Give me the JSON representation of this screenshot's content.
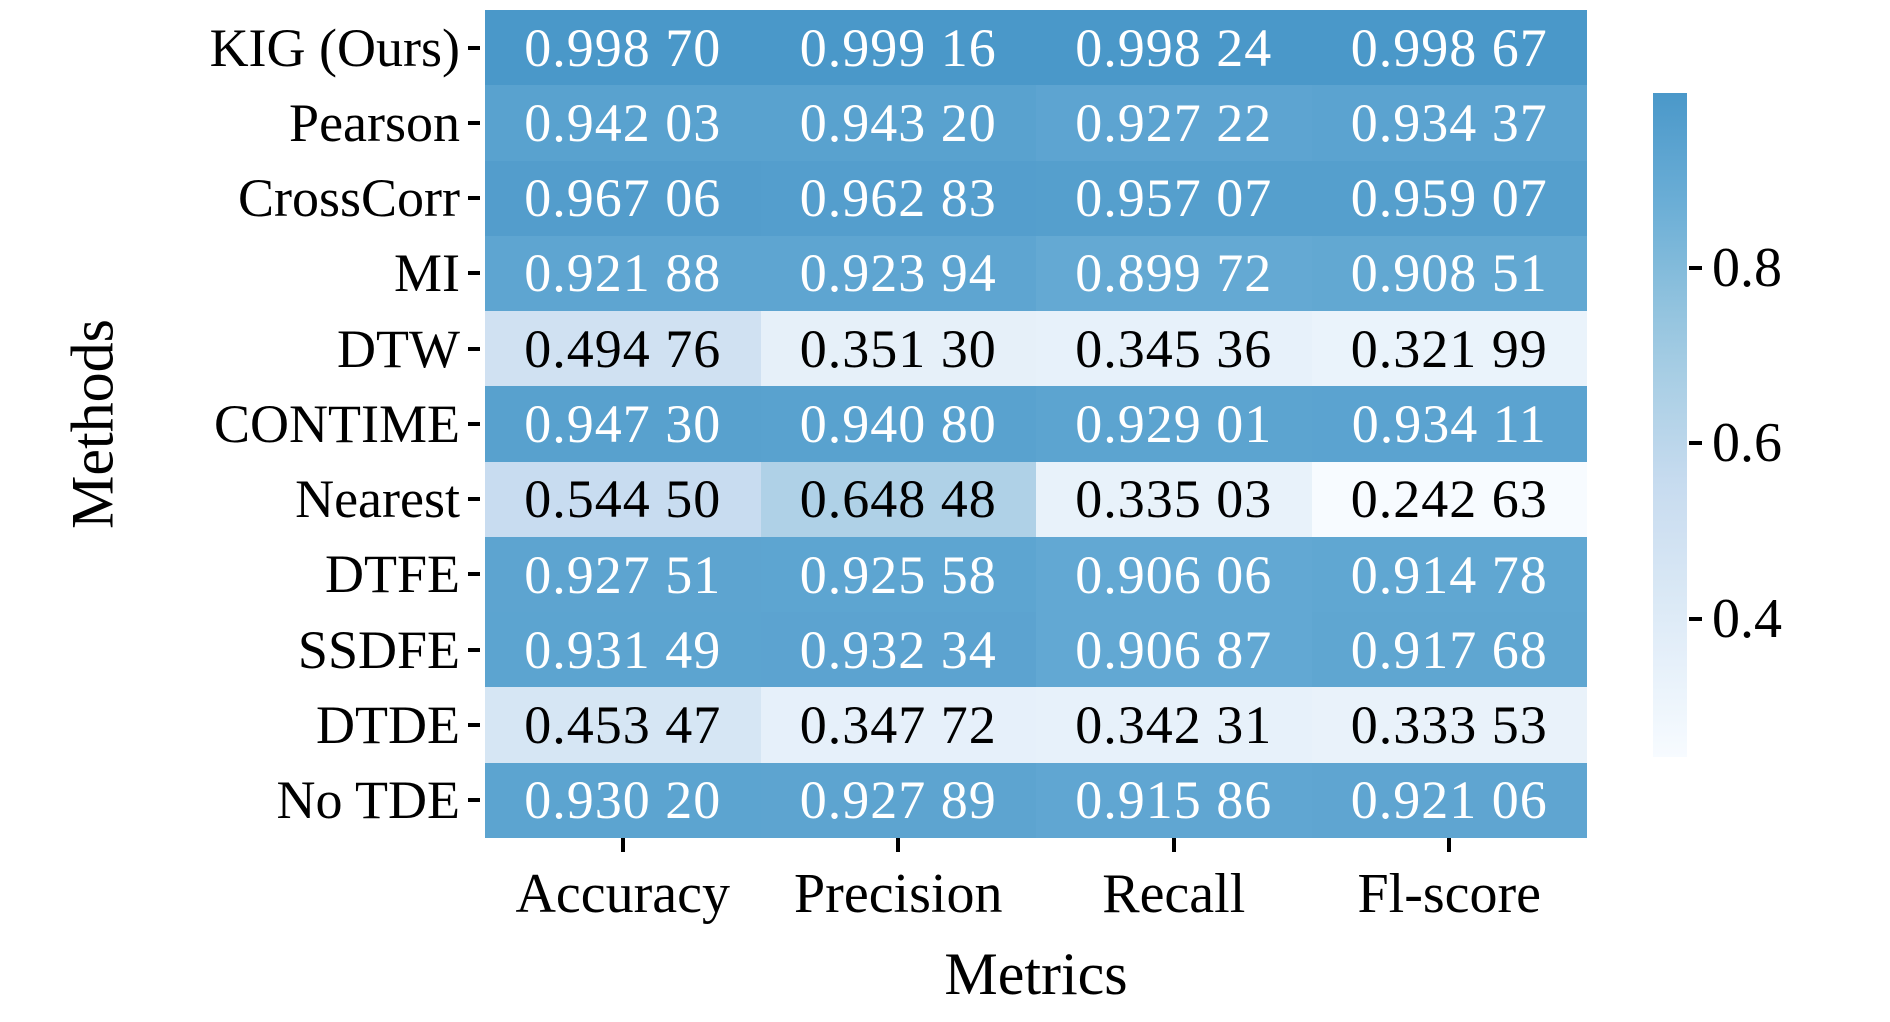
{
  "chart_data": {
    "type": "heatmap",
    "xlabel": "Metrics",
    "ylabel": "Methods",
    "columns": [
      "Accuracy",
      "Precision",
      "Recall",
      "Fl-score"
    ],
    "rows": [
      "KIG (Ours)",
      "Pearson",
      "CrossCorr",
      "MI",
      "DTW",
      "CONTIME",
      "Nearest",
      "DTFE",
      "SSDFE",
      "DTDE",
      "No TDE"
    ],
    "values": [
      [
        0.9987,
        0.99916,
        0.99824,
        0.99867
      ],
      [
        0.94203,
        0.9432,
        0.92722,
        0.93437
      ],
      [
        0.96706,
        0.96283,
        0.95707,
        0.95907
      ],
      [
        0.92188,
        0.92394,
        0.89972,
        0.90851
      ],
      [
        0.49476,
        0.3513,
        0.34536,
        0.32199
      ],
      [
        0.9473,
        0.9408,
        0.92901,
        0.93411
      ],
      [
        0.5445,
        0.64848,
        0.33503,
        0.24263
      ],
      [
        0.92751,
        0.92558,
        0.90606,
        0.91478
      ],
      [
        0.93149,
        0.93234,
        0.90687,
        0.91768
      ],
      [
        0.45347,
        0.34772,
        0.34231,
        0.33353
      ],
      [
        0.9302,
        0.92789,
        0.91586,
        0.92106
      ]
    ],
    "cell_labels": [
      [
        "0.998 70",
        "0.999 16",
        "0.998 24",
        "0.998 67"
      ],
      [
        "0.942 03",
        "0.943 20",
        "0.927 22",
        "0.934 37"
      ],
      [
        "0.967 06",
        "0.962 83",
        "0.957 07",
        "0.959 07"
      ],
      [
        "0.921 88",
        "0.923 94",
        "0.899 72",
        "0.908 51"
      ],
      [
        "0.494 76",
        "0.351 30",
        "0.345 36",
        "0.321 99"
      ],
      [
        "0.947 30",
        "0.940 80",
        "0.929 01",
        "0.934 11"
      ],
      [
        "0.544 50",
        "0.648 48",
        "0.335 03",
        "0.242 63"
      ],
      [
        "0.927 51",
        "0.925 58",
        "0.906 06",
        "0.914 78"
      ],
      [
        "0.931 49",
        "0.932 34",
        "0.906 87",
        "0.917 68"
      ],
      [
        "0.453 47",
        "0.347 72",
        "0.342 31",
        "0.333 53"
      ],
      [
        "0.930 20",
        "0.927 89",
        "0.915 86",
        "0.921 06"
      ]
    ],
    "colorbar": {
      "tick_labels": [
        "0.8",
        "0.6",
        "0.4"
      ],
      "tick_values": [
        0.8,
        0.6,
        0.4
      ],
      "vmin": 0.24263,
      "vmax": 0.99916
    },
    "colorscale": {
      "name": "blues",
      "max_pos": 0.6,
      "anchors": [
        {
          "pos": 0.0,
          "hex": "#f7fbff"
        },
        {
          "pos": 0.125,
          "hex": "#deebf7"
        },
        {
          "pos": 0.25,
          "hex": "#c6dbef"
        },
        {
          "pos": 0.375,
          "hex": "#9ecae1"
        },
        {
          "pos": 0.5,
          "hex": "#6baed6"
        },
        {
          "pos": 0.625,
          "hex": "#4292c6"
        }
      ],
      "text_dark": "#000000",
      "text_light": "#ffffff"
    },
    "legend_position": "right",
    "grid": false
  }
}
